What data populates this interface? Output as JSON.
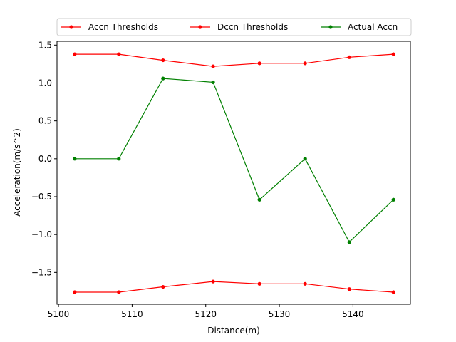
{
  "chart_data": {
    "type": "line",
    "xlabel": "Distance(m)",
    "ylabel": "Acceleration(m/s^2)",
    "xlim": [
      5099.8,
      5147.8
    ],
    "ylim": [
      -1.92,
      1.55
    ],
    "xticks": [
      5100,
      5110,
      5120,
      5130,
      5140
    ],
    "yticks": [
      -1.5,
      -1.0,
      -0.5,
      0.0,
      0.5,
      1.0,
      1.5
    ],
    "ytick_labels": [
      "−1.5",
      "−1.0",
      "−0.5",
      "0.0",
      "0.5",
      "1.0",
      "1.5"
    ],
    "grid": false,
    "legend_position": "top",
    "x": [
      5102.2,
      5108.2,
      5114.2,
      5121.0,
      5127.3,
      5133.5,
      5139.5,
      5145.5
    ],
    "series": [
      {
        "name": "Accn Thresholds",
        "color": "#ff0000",
        "values": [
          1.38,
          1.38,
          1.3,
          1.22,
          1.26,
          1.26,
          1.34,
          1.38
        ]
      },
      {
        "name": "Dccn Thresholds",
        "color": "#ff0000",
        "values": [
          -1.76,
          -1.76,
          -1.69,
          -1.62,
          -1.65,
          -1.65,
          -1.72,
          -1.76
        ]
      },
      {
        "name": "Actual Accn",
        "color": "#008000",
        "values": [
          0.0,
          0.0,
          1.06,
          1.01,
          -0.54,
          0.0,
          -1.1,
          -0.54
        ]
      }
    ]
  }
}
